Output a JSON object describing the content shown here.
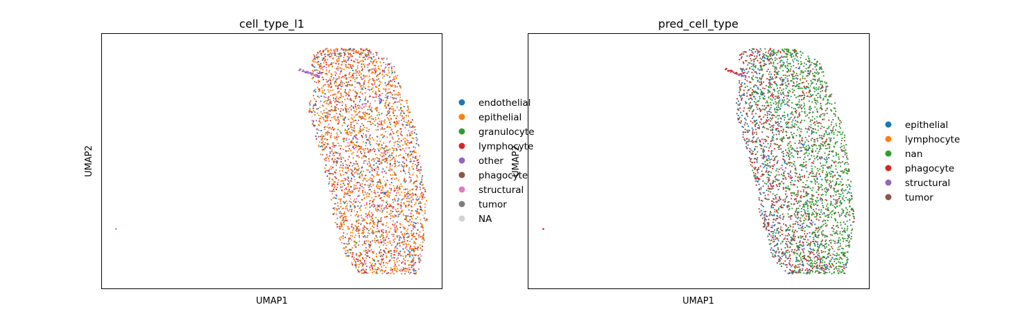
{
  "chart_data": [
    {
      "type": "scatter",
      "title": "cell_type_l1",
      "xlabel": "UMAP1",
      "ylabel": "UMAP2",
      "grid": false,
      "legend_position": "right",
      "categories": [
        {
          "name": "endothelial",
          "color": "#1f77b4",
          "weight": 0.08
        },
        {
          "name": "epithelial",
          "color": "#ff7f0e",
          "weight": 0.5
        },
        {
          "name": "granulocyte",
          "color": "#2ca02c",
          "weight": 0.02
        },
        {
          "name": "lymphocyte",
          "color": "#d62728",
          "weight": 0.14
        },
        {
          "name": "other",
          "color": "#9467bd",
          "weight": 0.05
        },
        {
          "name": "phagocyte",
          "color": "#8c564b",
          "weight": 0.07
        },
        {
          "name": "structural",
          "color": "#e377c2",
          "weight": 0.08
        },
        {
          "name": "tumor",
          "color": "#7f7f7f",
          "weight": 0.05
        },
        {
          "name": "NA",
          "color": "#d3d3d3",
          "weight": 0.01
        }
      ]
    },
    {
      "type": "scatter",
      "title": "pred_cell_type",
      "xlabel": "UMAP1",
      "ylabel": "UMAP2",
      "grid": false,
      "legend_position": "right",
      "categories": [
        {
          "name": "epithelial",
          "color": "#1f77b4",
          "weight": 0.17
        },
        {
          "name": "lymphocyte",
          "color": "#ff7f0e",
          "weight": 0.005
        },
        {
          "name": "nan",
          "color": "#2ca02c",
          "weight": 0.4
        },
        {
          "name": "phagocyte",
          "color": "#d62728",
          "weight": 0.18
        },
        {
          "name": "structural",
          "color": "#9467bd",
          "weight": 0.02
        },
        {
          "name": "tumor",
          "color": "#8c564b",
          "weight": 0.225
        }
      ]
    }
  ]
}
